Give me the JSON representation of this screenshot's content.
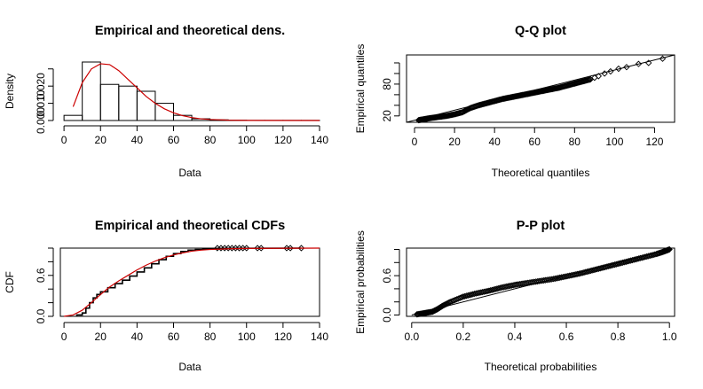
{
  "chart_data": [
    {
      "type": "histogram+line",
      "title": "Empirical and theoretical dens.",
      "xlabel": "Data",
      "ylabel": "Density",
      "xlim": [
        -2,
        140
      ],
      "ylim": [
        0,
        0.034
      ],
      "xticks": [
        0,
        20,
        40,
        60,
        80,
        100,
        120,
        140
      ],
      "yticks": [
        0.0,
        0.01,
        0.02
      ],
      "ytick_labels": [
        "0.000",
        "0.010",
        "0.020"
      ],
      "histogram": {
        "breaks": [
          0,
          10,
          20,
          30,
          40,
          50,
          60,
          70,
          80,
          90,
          100,
          110,
          120,
          130,
          140
        ],
        "densities": [
          0.003,
          0.034,
          0.021,
          0.02,
          0.017,
          0.01,
          0.003,
          0.001,
          0.0004,
          0.0002,
          0.0001,
          0.0001,
          0.0001,
          0.0001
        ]
      },
      "fitted_density": {
        "color": "#cc0000",
        "x": [
          5,
          10,
          15,
          20,
          25,
          30,
          35,
          40,
          45,
          50,
          55,
          60,
          65,
          70,
          75,
          80,
          90,
          100,
          140
        ],
        "y": [
          0.008,
          0.022,
          0.03,
          0.033,
          0.0325,
          0.029,
          0.024,
          0.019,
          0.014,
          0.01,
          0.0068,
          0.0045,
          0.0028,
          0.0017,
          0.001,
          0.0006,
          0.0002,
          5e-05,
          0.0
        ]
      }
    },
    {
      "type": "scatter",
      "title": "Q-Q plot",
      "xlabel": "Theoretical quantiles",
      "ylabel": "Empirical quantiles",
      "xlim": [
        -4,
        130
      ],
      "ylim": [
        8,
        135
      ],
      "xticks": [
        0,
        20,
        40,
        60,
        80,
        100,
        120
      ],
      "yticks": [
        20,
        80
      ],
      "reference_line": [
        [
          -4,
          8
        ],
        [
          130,
          135
        ]
      ],
      "points": [
        [
          2,
          12
        ],
        [
          5,
          14
        ],
        [
          8,
          16
        ],
        [
          12,
          18
        ],
        [
          16,
          20
        ],
        [
          20,
          23
        ],
        [
          24,
          27
        ],
        [
          28,
          35
        ],
        [
          32,
          40
        ],
        [
          36,
          44
        ],
        [
          40,
          48
        ],
        [
          44,
          52
        ],
        [
          48,
          55
        ],
        [
          52,
          58
        ],
        [
          56,
          61
        ],
        [
          60,
          64
        ],
        [
          64,
          67
        ],
        [
          68,
          70
        ],
        [
          72,
          73
        ],
        [
          76,
          77
        ],
        [
          80,
          81
        ],
        [
          84,
          85
        ],
        [
          88,
          89
        ],
        [
          90,
          92
        ],
        [
          92,
          95
        ],
        [
          95,
          100
        ],
        [
          98,
          104
        ],
        [
          102,
          109
        ],
        [
          106,
          112
        ],
        [
          112,
          118
        ],
        [
          117,
          120
        ],
        [
          124,
          128
        ]
      ]
    },
    {
      "type": "step",
      "title": "Empirical and theoretical CDFs",
      "xlabel": "Data",
      "ylabel": "CDF",
      "xlim": [
        -2,
        140
      ],
      "ylim": [
        0,
        1
      ],
      "xticks": [
        0,
        20,
        40,
        60,
        80,
        100,
        120,
        140
      ],
      "yticks": [
        0.0,
        0.6
      ],
      "empirical_x": [
        7,
        10,
        12,
        14,
        16,
        18,
        20,
        24,
        28,
        32,
        36,
        40,
        44,
        48,
        52,
        56,
        60,
        64,
        68,
        72,
        76,
        80,
        84
      ],
      "empirical_y": [
        0.02,
        0.05,
        0.12,
        0.2,
        0.27,
        0.32,
        0.36,
        0.42,
        0.48,
        0.53,
        0.59,
        0.65,
        0.71,
        0.77,
        0.83,
        0.88,
        0.92,
        0.95,
        0.97,
        0.98,
        0.985,
        0.99,
        0.995
      ],
      "tail_points_x": [
        84,
        86,
        88,
        90,
        92,
        94,
        96,
        98,
        100,
        106,
        108,
        122,
        124,
        130
      ],
      "fitted_cdf": {
        "color": "#cc0000",
        "x": [
          0,
          5,
          10,
          15,
          20,
          25,
          30,
          35,
          40,
          45,
          50,
          55,
          60,
          65,
          70,
          75,
          80,
          90,
          100,
          140
        ],
        "y": [
          0,
          0.02,
          0.09,
          0.2,
          0.32,
          0.43,
          0.52,
          0.6,
          0.68,
          0.75,
          0.81,
          0.86,
          0.9,
          0.93,
          0.955,
          0.97,
          0.98,
          0.99,
          0.995,
          1.0
        ]
      }
    },
    {
      "type": "scatter",
      "title": "P-P plot",
      "xlabel": "Theoretical probabilities",
      "ylabel": "Empirical probabilities",
      "xlim": [
        -0.02,
        1.02
      ],
      "ylim": [
        -0.02,
        1.02
      ],
      "xticks": [
        0.0,
        0.2,
        0.4,
        0.6,
        0.8,
        1.0
      ],
      "yticks": [
        0.0,
        0.6
      ],
      "reference_line": [
        [
          0,
          0
        ],
        [
          1,
          1
        ]
      ],
      "points": [
        [
          0.02,
          0.01
        ],
        [
          0.05,
          0.03
        ],
        [
          0.08,
          0.05
        ],
        [
          0.1,
          0.09
        ],
        [
          0.12,
          0.14
        ],
        [
          0.15,
          0.2
        ],
        [
          0.2,
          0.28
        ],
        [
          0.25,
          0.33
        ],
        [
          0.3,
          0.37
        ],
        [
          0.35,
          0.42
        ],
        [
          0.4,
          0.46
        ],
        [
          0.45,
          0.49
        ],
        [
          0.5,
          0.52
        ],
        [
          0.55,
          0.55
        ],
        [
          0.6,
          0.59
        ],
        [
          0.65,
          0.63
        ],
        [
          0.7,
          0.68
        ],
        [
          0.75,
          0.73
        ],
        [
          0.8,
          0.78
        ],
        [
          0.85,
          0.83
        ],
        [
          0.9,
          0.88
        ],
        [
          0.95,
          0.93
        ],
        [
          0.98,
          0.97
        ],
        [
          1.0,
          1.0
        ]
      ]
    }
  ]
}
